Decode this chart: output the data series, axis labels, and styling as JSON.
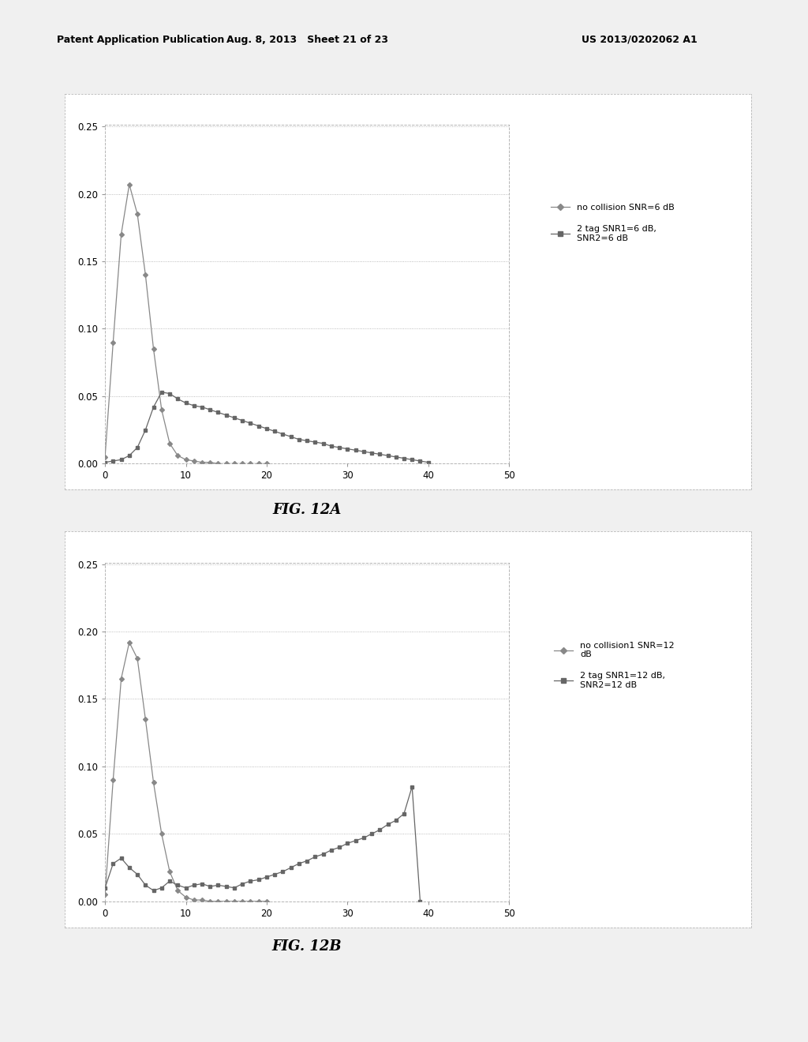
{
  "header_left": "Patent Application Publication",
  "header_mid": "Aug. 8, 2013   Sheet 21 of 23",
  "header_right": "US 2013/0202062 A1",
  "fig12a_label": "FIG. 12A",
  "fig12b_label": "FIG. 12B",
  "plot_bg": "#ffffff",
  "page_bg": "#f0f0f0",
  "legend1_line1": "no collision SNR=6 dB",
  "legend1_line2": "2 tag SNR1=6 dB,\nSNR2=6 dB",
  "legend2_line1": "no collision1 SNR=12\ndB",
  "legend2_line2": "2 tag SNR1=12 dB,\nSNR2=12 dB",
  "xlim": [
    0,
    50
  ],
  "ylim": [
    0,
    0.25
  ],
  "yticks": [
    0,
    0.05,
    0.1,
    0.15,
    0.2,
    0.25
  ],
  "xticks": [
    0,
    10,
    20,
    30,
    40,
    50
  ],
  "plot1_series1_x": [
    0,
    1,
    2,
    3,
    4,
    5,
    6,
    7,
    8,
    9,
    10,
    11,
    12,
    13,
    14,
    15,
    16,
    17,
    18,
    19,
    20
  ],
  "plot1_series1_y": [
    0.005,
    0.09,
    0.17,
    0.207,
    0.185,
    0.14,
    0.085,
    0.04,
    0.015,
    0.006,
    0.003,
    0.002,
    0.001,
    0.001,
    0.0,
    0.0,
    0.0,
    0.0,
    0.0,
    0.0,
    0.0
  ],
  "plot1_series2_x": [
    0,
    1,
    2,
    3,
    4,
    5,
    6,
    7,
    8,
    9,
    10,
    11,
    12,
    13,
    14,
    15,
    16,
    17,
    18,
    19,
    20,
    21,
    22,
    23,
    24,
    25,
    26,
    27,
    28,
    29,
    30,
    31,
    32,
    33,
    34,
    35,
    36,
    37,
    38,
    39,
    40
  ],
  "plot1_series2_y": [
    0.001,
    0.002,
    0.003,
    0.006,
    0.012,
    0.025,
    0.042,
    0.053,
    0.052,
    0.048,
    0.045,
    0.043,
    0.042,
    0.04,
    0.038,
    0.036,
    0.034,
    0.032,
    0.03,
    0.028,
    0.026,
    0.024,
    0.022,
    0.02,
    0.018,
    0.017,
    0.016,
    0.015,
    0.013,
    0.012,
    0.011,
    0.01,
    0.009,
    0.008,
    0.007,
    0.006,
    0.005,
    0.004,
    0.003,
    0.002,
    0.001
  ],
  "plot2_series1_x": [
    0,
    1,
    2,
    3,
    4,
    5,
    6,
    7,
    8,
    9,
    10,
    11,
    12,
    13,
    14,
    15,
    16,
    17,
    18,
    19,
    20
  ],
  "plot2_series1_y": [
    0.005,
    0.09,
    0.165,
    0.192,
    0.18,
    0.135,
    0.088,
    0.05,
    0.022,
    0.008,
    0.003,
    0.001,
    0.001,
    0.0,
    0.0,
    0.0,
    0.0,
    0.0,
    0.0,
    0.0,
    0.0
  ],
  "plot2_series2_x": [
    0,
    1,
    2,
    3,
    4,
    5,
    6,
    7,
    8,
    9,
    10,
    11,
    12,
    13,
    14,
    15,
    16,
    17,
    18,
    19,
    20,
    21,
    22,
    23,
    24,
    25,
    26,
    27,
    28,
    29,
    30,
    31,
    32,
    33,
    34,
    35,
    36,
    37,
    38,
    39
  ],
  "plot2_series2_y": [
    0.01,
    0.028,
    0.032,
    0.025,
    0.02,
    0.012,
    0.008,
    0.01,
    0.015,
    0.012,
    0.01,
    0.012,
    0.013,
    0.011,
    0.012,
    0.011,
    0.01,
    0.013,
    0.015,
    0.016,
    0.018,
    0.02,
    0.022,
    0.025,
    0.028,
    0.03,
    0.033,
    0.035,
    0.038,
    0.04,
    0.043,
    0.045,
    0.047,
    0.05,
    0.053,
    0.057,
    0.06,
    0.065,
    0.085,
    0.0
  ]
}
